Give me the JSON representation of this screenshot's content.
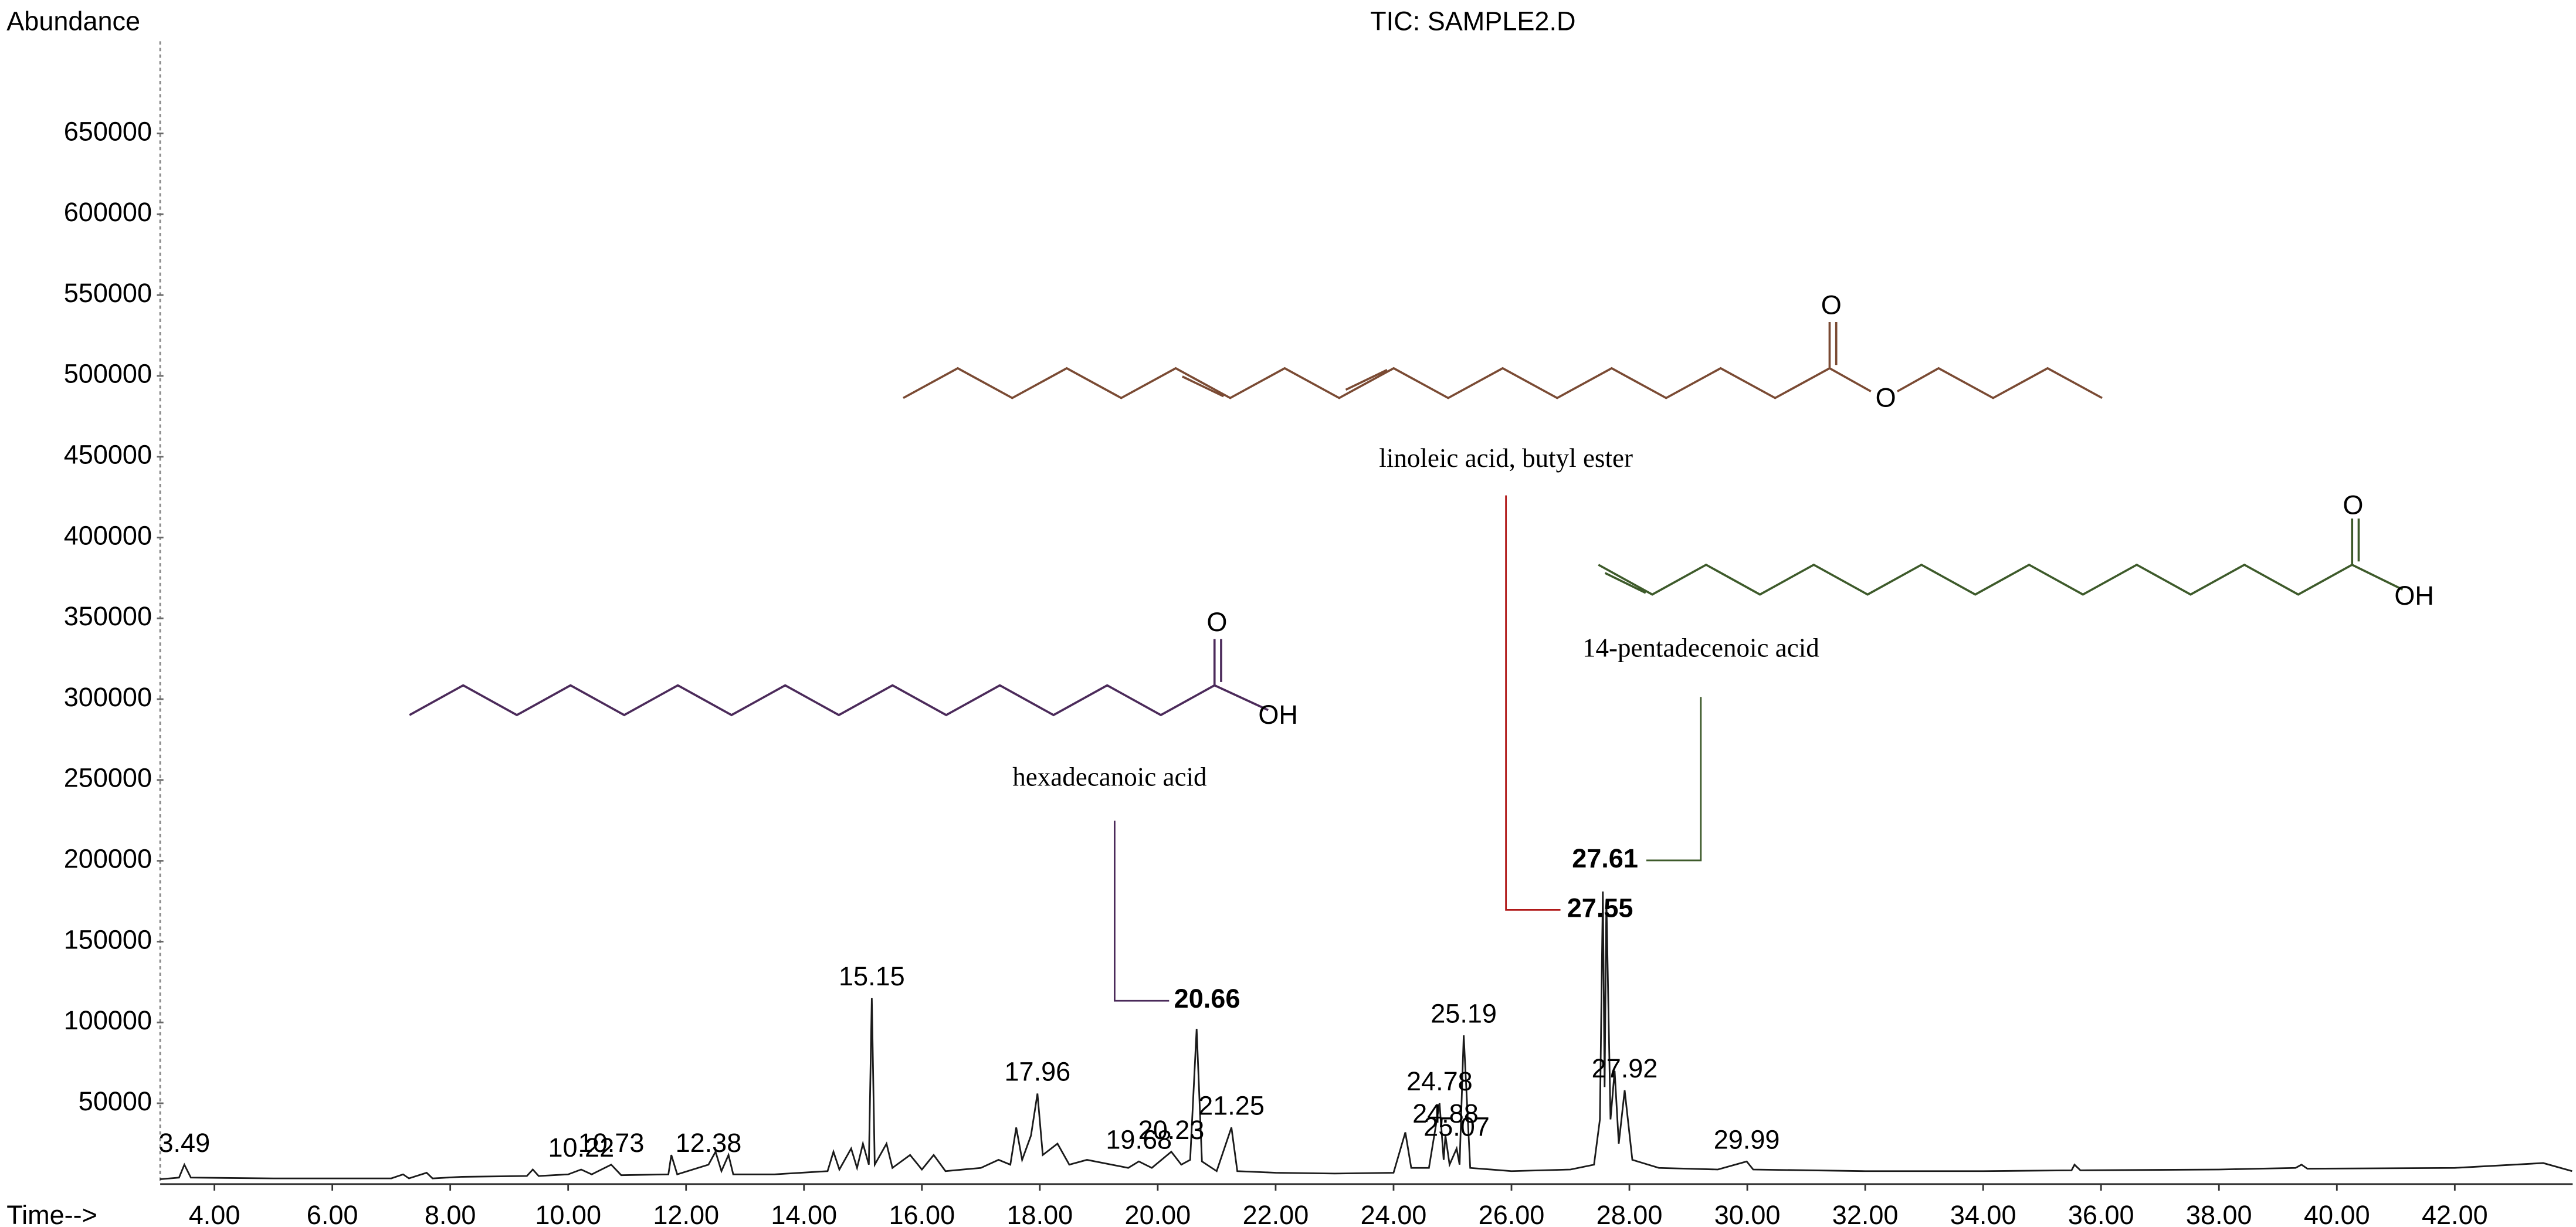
{
  "chart_data": {
    "type": "line",
    "title": "TIC: SAMPLE2.D",
    "y_label": "Abundance",
    "x_label": "Time-->",
    "xlim": [
      3.08,
      44.0
    ],
    "ylim": [
      0,
      707000
    ],
    "xticks": [
      {
        "value": 4,
        "label": "4.00"
      },
      {
        "value": 6,
        "label": "6.00"
      },
      {
        "value": 8,
        "label": "8.00"
      },
      {
        "value": 10,
        "label": "10.00"
      },
      {
        "value": 12,
        "label": "12.00"
      },
      {
        "value": 14,
        "label": "14.00"
      },
      {
        "value": 16,
        "label": "16.00"
      },
      {
        "value": 18,
        "label": "18.00"
      },
      {
        "value": 20,
        "label": "20.00"
      },
      {
        "value": 22,
        "label": "22.00"
      },
      {
        "value": 24,
        "label": "24.00"
      },
      {
        "value": 26,
        "label": "26.00"
      },
      {
        "value": 28,
        "label": "28.00"
      },
      {
        "value": 30,
        "label": "30.00"
      },
      {
        "value": 32,
        "label": "32.00"
      },
      {
        "value": 34,
        "label": "34.00"
      },
      {
        "value": 36,
        "label": "36.00"
      },
      {
        "value": 38,
        "label": "38.00"
      },
      {
        "value": 40,
        "label": "40.00"
      },
      {
        "value": 42,
        "label": "42.00"
      }
    ],
    "yticks": [
      50000,
      100000,
      150000,
      200000,
      250000,
      300000,
      350000,
      400000,
      450000,
      500000,
      550000,
      600000,
      650000
    ],
    "x": [
      3.08,
      3.4,
      3.49,
      3.6,
      5,
      7,
      7.2,
      7.3,
      7.6,
      7.7,
      8.2,
      9.3,
      9.4,
      9.5,
      10.0,
      10.22,
      10.4,
      10.73,
      10.9,
      11.7,
      11.75,
      11.85,
      12.38,
      12.5,
      12.6,
      12.72,
      12.8,
      13.5,
      14.4,
      14.5,
      14.6,
      14.8,
      14.9,
      15.0,
      15.1,
      15.15,
      15.2,
      15.4,
      15.5,
      15.8,
      16.0,
      16.2,
      16.4,
      17.0,
      17.3,
      17.5,
      17.6,
      17.7,
      17.85,
      17.96,
      18.05,
      18.3,
      18.5,
      18.8,
      19.5,
      19.68,
      19.9,
      20.23,
      20.4,
      20.55,
      20.66,
      20.75,
      21.0,
      21.25,
      21.35,
      22,
      23,
      24.0,
      24.2,
      24.3,
      24.6,
      24.78,
      24.85,
      24.88,
      24.95,
      25.07,
      25.12,
      25.19,
      25.3,
      26,
      27.0,
      27.4,
      27.5,
      27.55,
      27.58,
      27.61,
      27.68,
      27.75,
      27.82,
      27.92,
      28.05,
      28.5,
      29.5,
      29.99,
      30.1,
      32,
      34,
      35.5,
      35.55,
      35.65,
      38,
      39.3,
      39.4,
      39.5,
      42,
      43.5,
      43.99
    ],
    "series": [
      {
        "color": "#1a1a1a",
        "values": [
          3000,
          4000,
          12000,
          4000,
          3500,
          3500,
          6000,
          3500,
          7000,
          3500,
          4500,
          5000,
          9000,
          5000,
          6000,
          9000,
          6000,
          12000,
          5500,
          6000,
          18000,
          6000,
          12000,
          20000,
          8000,
          18000,
          6000,
          6000,
          8000,
          20000,
          9000,
          22000,
          10000,
          25000,
          12000,
          115000,
          12000,
          25000,
          10000,
          18000,
          9000,
          18000,
          8000,
          10000,
          15000,
          12000,
          35000,
          15000,
          30000,
          56000,
          18000,
          25000,
          12000,
          15000,
          10000,
          14000,
          10000,
          20000,
          12000,
          15000,
          96000,
          14000,
          8000,
          35000,
          8000,
          7000,
          6500,
          7000,
          32000,
          10000,
          10000,
          50000,
          15000,
          30000,
          12000,
          22000,
          12000,
          92000,
          10000,
          8000,
          9000,
          12000,
          40000,
          181000,
          60000,
          176000,
          40000,
          70000,
          25000,
          58000,
          15000,
          10000,
          9000,
          14000,
          9000,
          8000,
          8000,
          8500,
          12000,
          8500,
          9000,
          10000,
          12000,
          9500,
          10000,
          13000,
          8000
        ]
      }
    ],
    "peak_labels": [
      3.49,
      10.22,
      10.73,
      12.38,
      15.15,
      17.96,
      19.68,
      20.23,
      21.25,
      24.78,
      24.88,
      25.07,
      25.19,
      27.92,
      29.99
    ],
    "structures": [
      {
        "name": "hexadecanoic acid",
        "peak": 20.66,
        "color": "#4b2a5a",
        "peak_color": "#8a2a9a",
        "atoms": [
          "O",
          "OH"
        ]
      },
      {
        "name": "linoleic acid, butyl ester",
        "peak": 27.55,
        "color": "#7a4a33",
        "peak_color": "#6b1010",
        "atoms": [
          "O",
          "O"
        ]
      },
      {
        "name": "14-pentadecenoic acid",
        "peak": 27.61,
        "color": "#3d5a2a",
        "peak_color": "#6a9a20",
        "atoms": [
          "O",
          "OH"
        ]
      }
    ]
  }
}
